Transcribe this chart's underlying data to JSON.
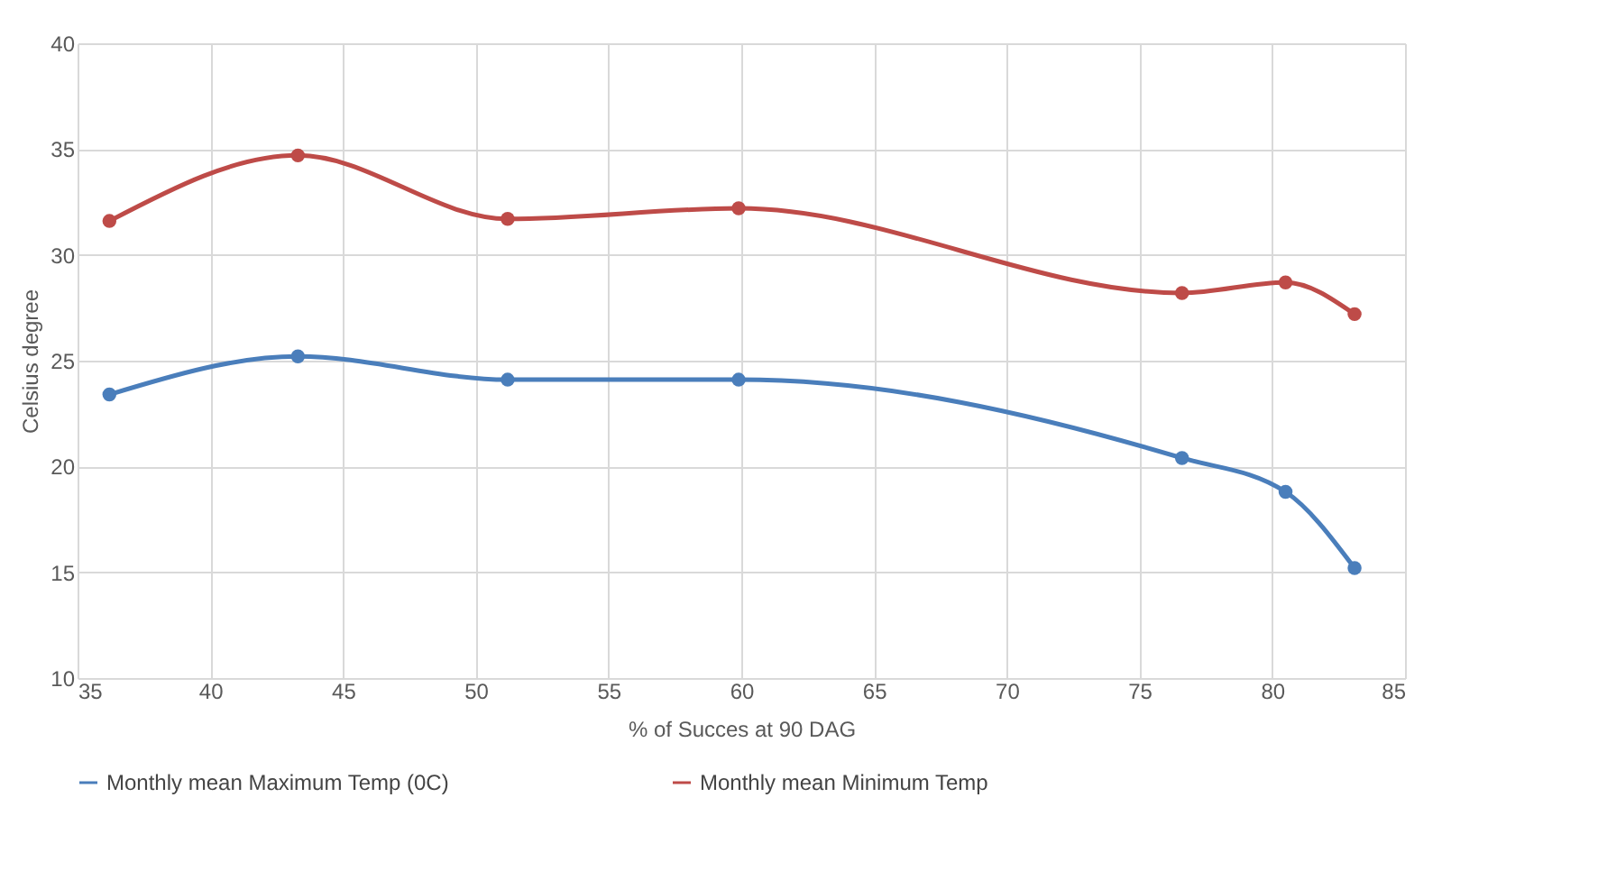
{
  "chart_data": {
    "type": "line",
    "xlabel": "% of Succes at 90 DAG",
    "ylabel": "Celsius degree",
    "x": [
      36.2,
      43.3,
      51.2,
      59.9,
      76.6,
      80.5,
      83.1
    ],
    "series": [
      {
        "name": "Monthly mean Maximum Temp (0C)",
        "color": "#4a7ebb",
        "values": [
          23.4,
          25.2,
          24.1,
          24.1,
          20.4,
          18.8,
          15.2
        ]
      },
      {
        "name": "Monthly mean Minimum Temp",
        "color": "#be4b48",
        "values": [
          31.6,
          34.7,
          31.7,
          32.2,
          28.2,
          28.7,
          27.2
        ]
      }
    ],
    "xlim": [
      35,
      85
    ],
    "xticks": [
      35,
      40,
      45,
      50,
      55,
      60,
      65,
      70,
      75,
      80,
      85
    ],
    "ylim": [
      10,
      40
    ],
    "yticks": [
      10,
      15,
      20,
      25,
      30,
      35,
      40
    ],
    "grid": true,
    "legend": "bottom",
    "marker": "circle",
    "line_style": "solid"
  }
}
